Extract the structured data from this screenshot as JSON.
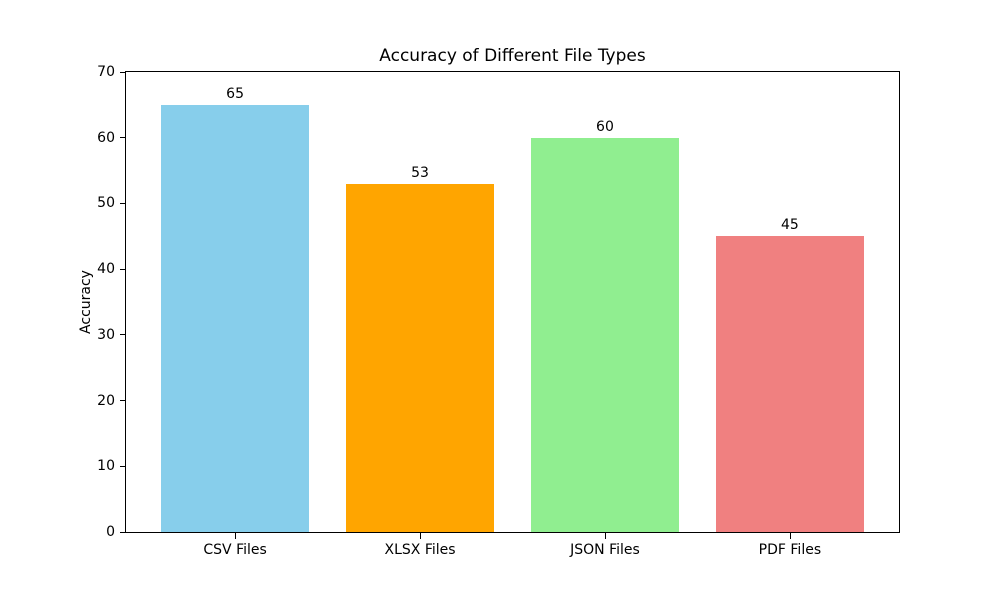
{
  "chart_data": {
    "type": "bar",
    "title": "Accuracy of Different File Types",
    "xlabel": "",
    "ylabel": "Accuracy",
    "categories": [
      "CSV Files",
      "XLSX Files",
      "JSON Files",
      "PDF Files"
    ],
    "values": [
      65,
      53,
      60,
      45
    ],
    "value_labels": [
      "65",
      "53",
      "60",
      "45"
    ],
    "bar_colors": [
      "#87CEEB",
      "#FFA500",
      "#90EE90",
      "#F08080"
    ],
    "ylim": [
      0,
      70
    ],
    "yticks": [
      0,
      10,
      20,
      30,
      40,
      50,
      60,
      70
    ],
    "grid": false,
    "legend": "none",
    "bar_width_fraction": 0.8
  }
}
